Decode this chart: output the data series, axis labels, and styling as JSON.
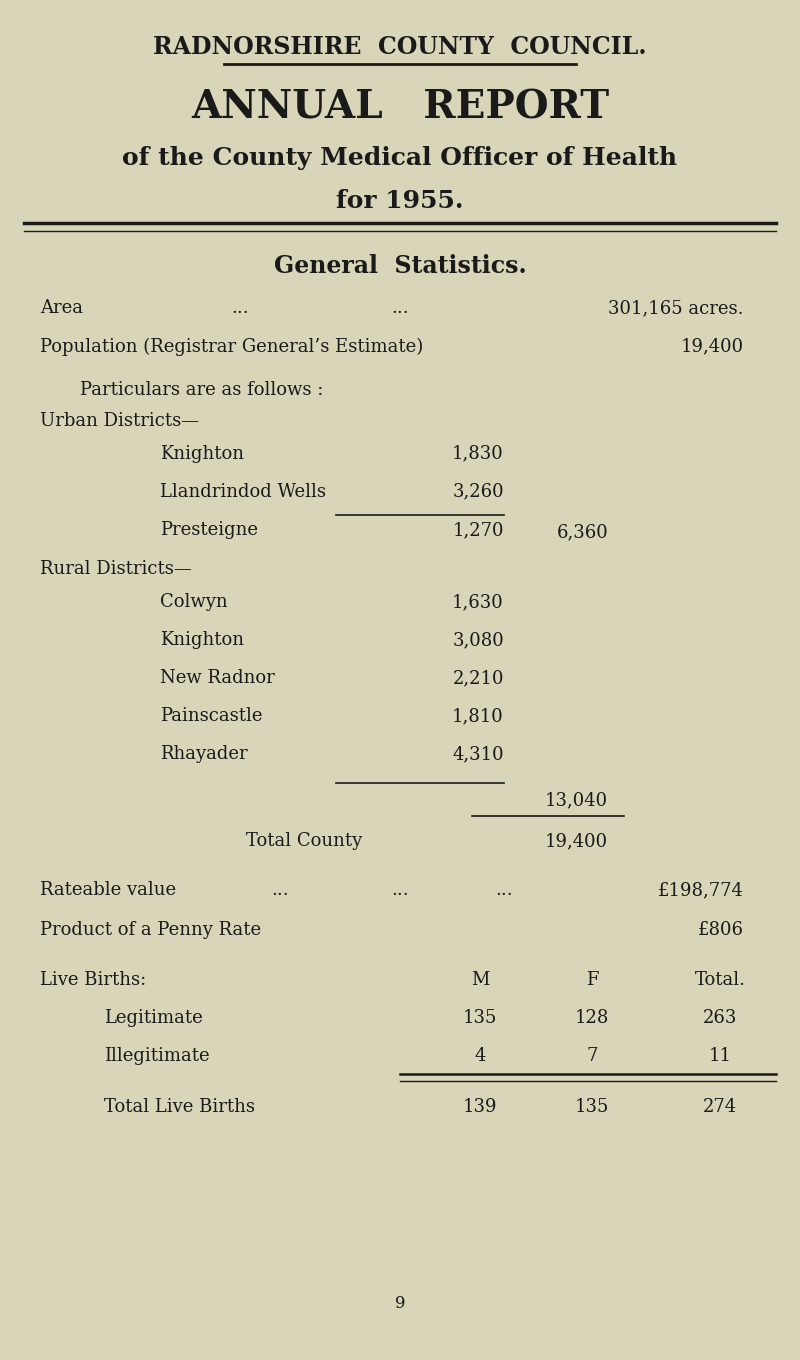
{
  "bg_color": "#d8d5b8",
  "text_color": "#1a1a1a",
  "title1": "RADNORSHIRE  COUNTY  COUNCIL.",
  "title2": "ANNUAL   REPORT",
  "title3": "of the County Medical Officer of Health",
  "title4": "for 1955.",
  "section_title": "General  Statistics.",
  "area_label": "Area",
  "area_dots": "...",
  "area_dots2": "...",
  "area_value": "301,165 acres.",
  "pop_label": "Population (Registrar General’s Estimate)",
  "pop_value": "19,400",
  "particulars_label": "Particulars are as follows :",
  "urban_label": "Urban Districts—",
  "urban_districts": [
    {
      "name": "Knighton",
      "value": "1,830"
    },
    {
      "name": "Llandrindod Wells",
      "value": "3,260"
    },
    {
      "name": "Presteigne",
      "value": "1,270"
    }
  ],
  "urban_total": "6,360",
  "rural_label": "Rural Districts—",
  "rural_districts": [
    {
      "name": "Colwyn",
      "value": "1,630"
    },
    {
      "name": "Knighton",
      "value": "3,080"
    },
    {
      "name": "New Radnor",
      "value": "2,210"
    },
    {
      "name": "Painscastle",
      "value": "1,810"
    },
    {
      "name": "Rhayader",
      "value": "4,310"
    }
  ],
  "rural_subtotal": "13,040",
  "total_county_label": "Total County",
  "total_county_value": "19,400",
  "rateable_label": "Rateable value",
  "rateable_dots": "...",
  "rateable_dots2": "...",
  "rateable_dots3": "...",
  "rateable_value": "£198,774",
  "penny_label": "Product of a Penny Rate",
  "penny_value": "£806",
  "births_label": "Live Births:",
  "births_col_m": "M",
  "births_col_f": "F",
  "births_col_total": "Total.",
  "legitimate_label": "Legitimate",
  "legitimate_m": "135",
  "legitimate_f": "128",
  "legitimate_total": "263",
  "illegitimate_label": "Illegitimate",
  "illegitimate_m": "4",
  "illegitimate_f": "7",
  "illegitimate_total": "11",
  "total_births_label": "Total Live Births",
  "total_births_m": "139",
  "total_births_f": "135",
  "total_births_total": "274",
  "page_number": "9"
}
